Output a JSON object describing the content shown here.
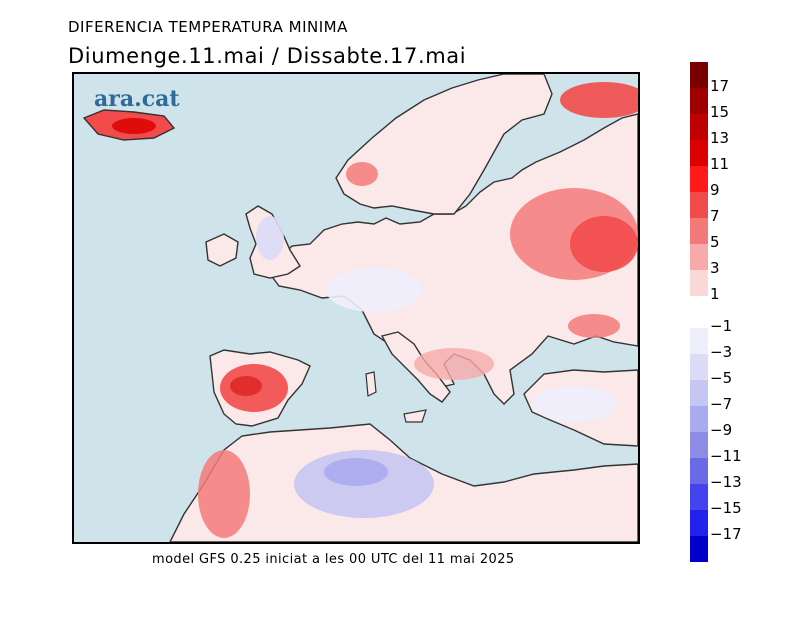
{
  "title": "DIFERENCIA TEMPERATURA MINIMA",
  "subtitle": "Diumenge.11.mai / Dissabte.17.mai",
  "logo_text": "ara.cat",
  "footer": "model GFS 0.25 iniciat a les 00 UTC del 11 mai 2025",
  "colorbar": {
    "labels": [
      "17",
      "15",
      "13",
      "11",
      "9",
      "7",
      "5",
      "3",
      "1",
      "−1",
      "−3",
      "−5",
      "−7",
      "−9",
      "−11",
      "−13",
      "−15",
      "−17"
    ],
    "colors": [
      "#7a0000",
      "#9e0000",
      "#c00000",
      "#dd0000",
      "#ff1a1a",
      "#f24b4b",
      "#f47a7a",
      "#f7aaaa",
      "#fbd8d8",
      "#ffffff",
      "#eeeefc",
      "#dcdcf6",
      "#c6c6f2",
      "#aaaaee",
      "#8c8ce6",
      "#6a6ae6",
      "#4444ee",
      "#2222ee",
      "#0000cc"
    ]
  },
  "colors": {
    "sea": "#cfe3ea",
    "warm": "#f24b4b",
    "cool": "#c6c6f2",
    "land_neutral": "#fbe9ea"
  }
}
